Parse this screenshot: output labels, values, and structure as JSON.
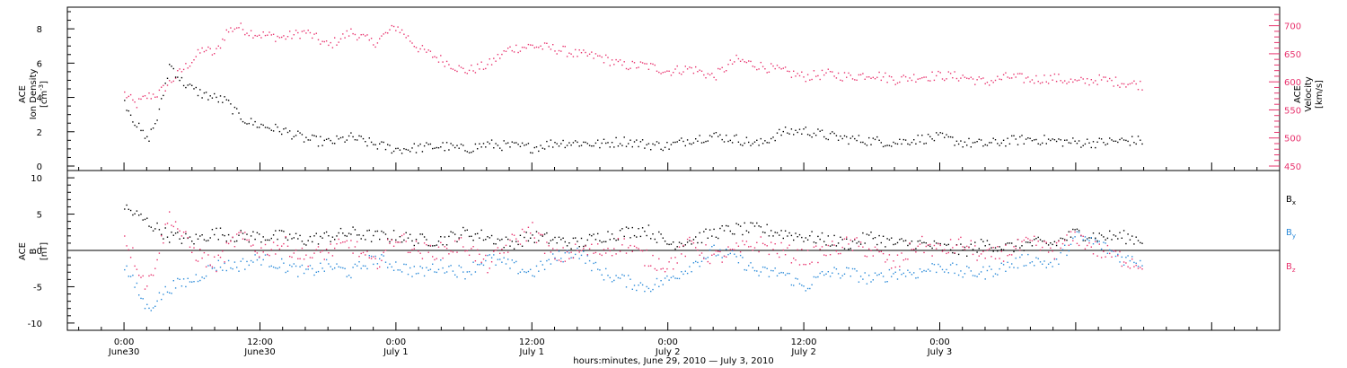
{
  "chart_data": [
    {
      "type": "scatter",
      "panel": "top",
      "ylabel_left": [
        "ACE",
        "Ion Density",
        "[cm⁻³]"
      ],
      "ylabel_right": [
        "ACE",
        "Velocity",
        "[km/s]"
      ],
      "left_axis": {
        "ylim": [
          0,
          9
        ],
        "ticks": [
          0,
          2,
          4,
          6,
          8
        ]
      },
      "right_axis": {
        "ylim": [
          450,
          725
        ],
        "ticks": [
          450,
          500,
          550,
          600,
          650,
          700
        ]
      },
      "series": [
        {
          "name": "",
          "axis": "left",
          "color": "#000000",
          "hour": [
            0,
            1,
            2,
            3,
            4,
            5,
            6,
            7,
            8,
            9,
            10,
            11,
            12,
            14,
            16,
            18,
            20,
            22,
            24,
            26,
            28,
            30,
            32,
            34,
            36,
            38,
            40,
            42,
            44,
            46,
            48,
            50,
            52,
            54,
            56,
            58,
            60,
            62,
            64,
            66,
            68,
            70,
            72,
            74,
            76,
            78,
            80,
            82,
            84,
            86,
            88,
            90
          ],
          "values": [
            3.8,
            2.5,
            1.5,
            3.0,
            6.0,
            5.0,
            4.5,
            4.2,
            4.0,
            3.8,
            3.0,
            2.6,
            2.4,
            2.1,
            1.6,
            1.4,
            1.7,
            1.3,
            1.0,
            1.1,
            1.2,
            1.0,
            1.3,
            1.2,
            1.1,
            1.4,
            1.4,
            1.3,
            1.5,
            1.3,
            1.2,
            1.6,
            1.8,
            1.6,
            1.3,
            2.0,
            2.1,
            1.8,
            1.6,
            1.5,
            1.4,
            1.6,
            1.7,
            1.4,
            1.3,
            1.5,
            1.6,
            1.5,
            1.4,
            1.4,
            1.5,
            1.5
          ]
        },
        {
          "name": "",
          "axis": "right",
          "color": "#e8336e",
          "hour": [
            0,
            1,
            2,
            3,
            4,
            5,
            6,
            7,
            8,
            9,
            10,
            11,
            12,
            14,
            16,
            18,
            20,
            22,
            24,
            26,
            28,
            30,
            32,
            34,
            36,
            38,
            40,
            42,
            44,
            46,
            48,
            50,
            52,
            54,
            56,
            58,
            60,
            62,
            64,
            66,
            68,
            70,
            72,
            74,
            76,
            78,
            80,
            82,
            84,
            86,
            88,
            90
          ],
          "values": [
            580,
            560,
            575,
            580,
            600,
            620,
            640,
            660,
            650,
            690,
            700,
            690,
            685,
            680,
            690,
            665,
            690,
            670,
            700,
            660,
            640,
            620,
            630,
            660,
            665,
            660,
            650,
            645,
            630,
            630,
            620,
            625,
            610,
            640,
            630,
            620,
            610,
            615,
            610,
            615,
            605,
            610,
            612,
            610,
            600,
            610,
            605,
            608,
            600,
            605,
            600,
            595
          ]
        }
      ]
    },
    {
      "type": "scatter",
      "panel": "bottom",
      "ylabel_left": [
        "ACE",
        "B",
        "[nT]"
      ],
      "ylim": [
        -11,
        11
      ],
      "ticks": [
        -10,
        -5,
        0,
        5,
        10
      ],
      "legend_placement": "right",
      "series": [
        {
          "name": "Bₓ",
          "color": "#000000",
          "hour": [
            0,
            2,
            4,
            6,
            8,
            10,
            12,
            14,
            16,
            18,
            20,
            22,
            24,
            26,
            28,
            30,
            32,
            34,
            36,
            38,
            40,
            42,
            44,
            46,
            48,
            50,
            52,
            54,
            56,
            58,
            60,
            62,
            64,
            66,
            68,
            70,
            72,
            74,
            76,
            78,
            80,
            82,
            84,
            86,
            88,
            90
          ],
          "values": [
            6,
            4,
            2,
            1.5,
            2.5,
            2,
            2,
            2,
            1.5,
            2,
            2.5,
            2,
            2,
            1.5,
            1.5,
            2.5,
            2,
            1,
            2,
            1.5,
            1,
            2,
            2.5,
            3,
            1,
            1.5,
            2.5,
            3,
            3,
            2.5,
            2,
            1.5,
            1,
            2,
            1,
            1,
            0.5,
            0,
            1,
            0.5,
            1,
            1,
            2.5,
            2,
            2,
            1.5
          ]
        },
        {
          "name": "Bᵧ",
          "color": "#2a8ad9",
          "hour": [
            0,
            2,
            4,
            6,
            8,
            10,
            12,
            14,
            16,
            18,
            20,
            22,
            24,
            26,
            28,
            30,
            32,
            34,
            36,
            38,
            40,
            42,
            44,
            46,
            48,
            50,
            52,
            54,
            56,
            58,
            60,
            62,
            64,
            66,
            68,
            70,
            72,
            74,
            76,
            78,
            80,
            82,
            84,
            86,
            88,
            90
          ],
          "values": [
            -2,
            -8,
            -5,
            -4,
            -2,
            -2,
            -1,
            -2,
            -3,
            -2,
            -3,
            -1,
            -2,
            -3,
            -2,
            -3,
            -1,
            -2,
            -3,
            -1,
            0,
            -3,
            -4,
            -5,
            -4,
            -2,
            0,
            -1,
            -3,
            -3,
            -5,
            -3,
            -3,
            -4,
            -3,
            -3,
            -2,
            -3,
            -3,
            -2,
            -1,
            -2,
            2,
            1,
            -1,
            -1.5
          ]
        },
        {
          "name": "B_z",
          "color": "#e8336e",
          "hour": [
            0,
            2,
            4,
            6,
            8,
            10,
            12,
            14,
            16,
            18,
            20,
            22,
            24,
            26,
            28,
            30,
            32,
            34,
            36,
            38,
            40,
            42,
            44,
            46,
            48,
            50,
            52,
            54,
            56,
            58,
            60,
            62,
            64,
            66,
            68,
            70,
            72,
            74,
            76,
            78,
            80,
            82,
            84,
            86,
            88,
            90
          ],
          "values": [
            2,
            -5,
            5,
            0,
            -2,
            2,
            0,
            1,
            -1,
            0,
            1,
            -2,
            2,
            0,
            0,
            1,
            -2,
            1,
            3,
            -1,
            0,
            0,
            1,
            -1,
            -2,
            1,
            -1,
            0,
            1,
            0,
            -1,
            0,
            1,
            0,
            -2,
            1,
            0,
            1,
            -1,
            0,
            1,
            0,
            2,
            0,
            -1,
            -2
          ]
        }
      ]
    },
    {
      "type": "shared-x",
      "xlabel": "hours:minutes, June 29, 2010 — July  3, 2010",
      "xlim_hours": [
        -5,
        102
      ],
      "major_ticks": [
        {
          "hour": 0,
          "time": "0:00",
          "day": "June30"
        },
        {
          "hour": 12,
          "time": "12:00",
          "day": "June30"
        },
        {
          "hour": 24,
          "time": "0:00",
          "day": "July 1"
        },
        {
          "hour": 36,
          "time": "12:00",
          "day": "July 1"
        },
        {
          "hour": 48,
          "time": "0:00",
          "day": "July 2"
        },
        {
          "hour": 60,
          "time": "12:00",
          "day": "July 2"
        },
        {
          "hour": 72,
          "time": "0:00",
          "day": "July 3"
        }
      ],
      "note_hour_origin": "hour 0 = June 30 0:00"
    }
  ],
  "legend": {
    "bx_main": "B",
    "bx_sub": "x",
    "by_main": "B",
    "by_sub": "y",
    "bz_main": "B",
    "bz_sub": "z"
  },
  "axis_text": {
    "top_left": [
      "ACE",
      "Ion Density",
      "[cm",
      "]"
    ],
    "top_right": [
      "ACE",
      "Velocity",
      "[km/s]"
    ],
    "bottom_left": [
      "ACE",
      "B",
      "[nT]"
    ],
    "xlabel": "hours:minutes, June 29, 2010 — July  3, 2010"
  },
  "colors": {
    "density": "#000000",
    "velocity": "#e8336e",
    "bx": "#000000",
    "by": "#2a8ad9",
    "bz": "#e8336e"
  }
}
